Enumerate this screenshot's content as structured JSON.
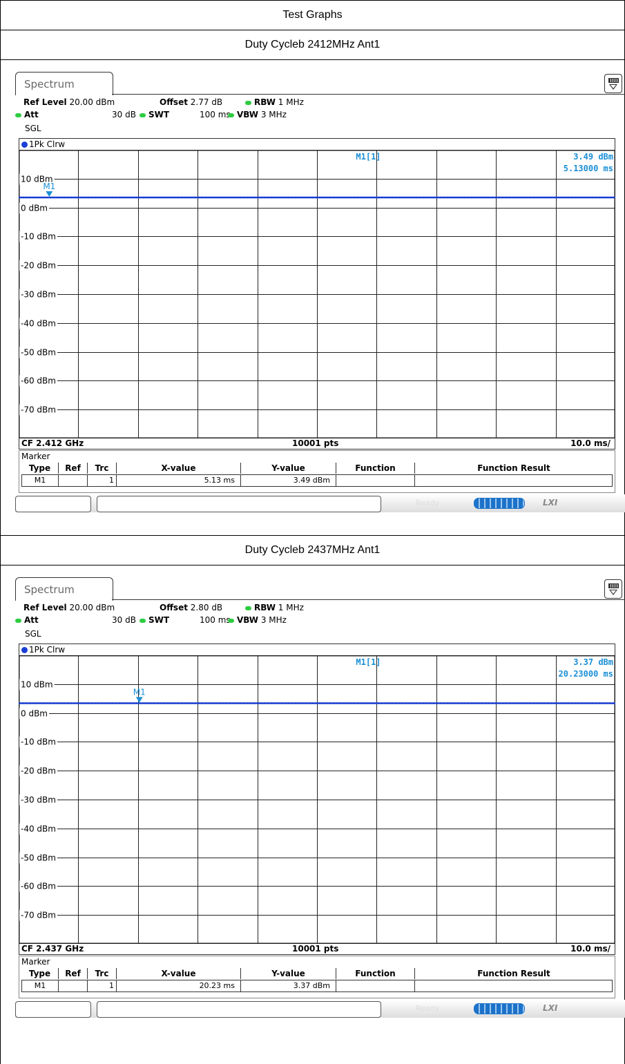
{
  "header": {
    "title": "Test Graphs"
  },
  "chart_data": [
    {
      "type": "line",
      "title": "Duty Cycleb 2412MHz Ant1",
      "tab": "Spectrum",
      "params": {
        "ref_level_label": "Ref Level",
        "ref_level": "20.00 dBm",
        "offset_label": "Offset",
        "offset": "2.77 dB",
        "rbw_label": "RBW",
        "rbw": "1 MHz",
        "att_label": "Att",
        "att": "30 dB",
        "swt_label": "SWT",
        "swt": "100 ms",
        "vbw_label": "VBW",
        "vbw": "3 MHz",
        "mode": "SGL"
      },
      "trace_label": "1Pk Clrw",
      "ylim": [
        -80,
        20
      ],
      "xlim": [
        0,
        100
      ],
      "y_ticks": [
        "10 dBm",
        "0 dBm",
        "-10 dBm",
        "-20 dBm",
        "-30 dBm",
        "-40 dBm",
        "-50 dBm",
        "-60 dBm",
        "-70 dBm"
      ],
      "y_tick_values": [
        10,
        0,
        -10,
        -20,
        -30,
        -40,
        -50,
        -60,
        -70
      ],
      "series": [
        {
          "x": [
            0,
            100
          ],
          "y": [
            3.49,
            3.49
          ]
        }
      ],
      "marker": {
        "name": "M1",
        "x": 5.13,
        "y": 3.49,
        "readout_label": "M1[1]",
        "readout_y": "3.49 dBm",
        "readout_x": "5.13000 ms"
      },
      "footer": {
        "cf": "CF 2.412 GHz",
        "pts": "10001 pts",
        "div": "10.0 ms/"
      },
      "marker_table": {
        "title": "Marker",
        "headers": [
          "Type",
          "Ref",
          "Trc",
          "X-value",
          "Y-value",
          "Function",
          "Function Result"
        ],
        "row": [
          "M1",
          "",
          "1",
          "5.13 ms",
          "3.49 dBm",
          "",
          ""
        ]
      },
      "status": {
        "ready": "Ready",
        "lxi": "LXI"
      }
    },
    {
      "type": "line",
      "title": "Duty Cycleb 2437MHz Ant1",
      "tab": "Spectrum",
      "params": {
        "ref_level_label": "Ref Level",
        "ref_level": "20.00 dBm",
        "offset_label": "Offset",
        "offset": "2.80 dB",
        "rbw_label": "RBW",
        "rbw": "1 MHz",
        "att_label": "Att",
        "att": "30 dB",
        "swt_label": "SWT",
        "swt": "100 ms",
        "vbw_label": "VBW",
        "vbw": "3 MHz",
        "mode": "SGL"
      },
      "trace_label": "1Pk Clrw",
      "ylim": [
        -80,
        20
      ],
      "xlim": [
        0,
        100
      ],
      "y_ticks": [
        "10 dBm",
        "0 dBm",
        "-10 dBm",
        "-20 dBm",
        "-30 dBm",
        "-40 dBm",
        "-50 dBm",
        "-60 dBm",
        "-70 dBm"
      ],
      "y_tick_values": [
        10,
        0,
        -10,
        -20,
        -30,
        -40,
        -50,
        -60,
        -70
      ],
      "series": [
        {
          "x": [
            0,
            100
          ],
          "y": [
            3.37,
            3.37
          ]
        }
      ],
      "marker": {
        "name": "M1",
        "x": 20.23,
        "y": 3.37,
        "readout_label": "M1[1]",
        "readout_y": "3.37 dBm",
        "readout_x": "20.23000 ms"
      },
      "footer": {
        "cf": "CF 2.437 GHz",
        "pts": "10001 pts",
        "div": "10.0 ms/"
      },
      "marker_table": {
        "title": "Marker",
        "headers": [
          "Type",
          "Ref",
          "Trc",
          "X-value",
          "Y-value",
          "Function",
          "Function Result"
        ],
        "row": [
          "M1",
          "",
          "1",
          "20.23 ms",
          "3.37 dBm",
          "",
          ""
        ]
      },
      "status": {
        "ready": "Ready",
        "lxi": "LXI"
      }
    }
  ]
}
